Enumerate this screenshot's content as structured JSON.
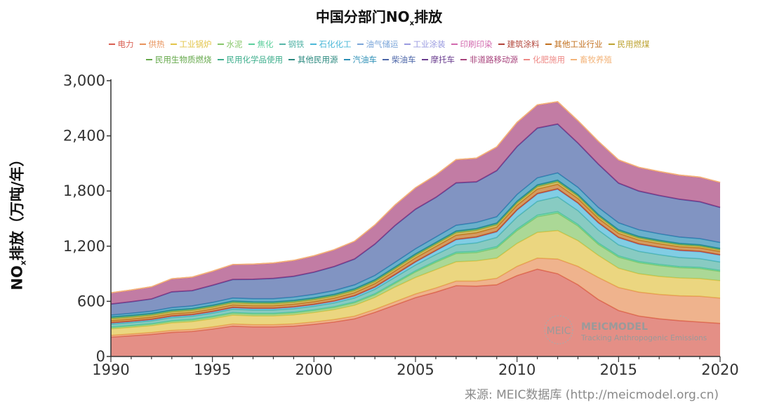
{
  "header": {
    "title_main": "中国分部门NO",
    "title_sub": "x",
    "title_tail": "排放"
  },
  "source_text": "来源: MEIC数据库 (http://meicmodel.org.cn)",
  "watermark": {
    "badge": "MEIC",
    "name": "MEICMODEL",
    "tagline": "Tracking Anthropogenic Emissions"
  },
  "chart_data": {
    "type": "area",
    "stacked": true,
    "title": "中国分部门NOx排放",
    "xlabel": "",
    "ylabel_main": "NO",
    "ylabel_sub": "x",
    "ylabel_tail": "排放（万吨/年）",
    "ylim": [
      0,
      3000
    ],
    "yticks": [
      0,
      600,
      1200,
      1800,
      2400,
      3000
    ],
    "ytick_labels": [
      "0",
      "600",
      "1,200",
      "1,800",
      "2,400",
      "3,000"
    ],
    "xlim": [
      1990,
      2020
    ],
    "xticks": [
      1990,
      1995,
      2000,
      2005,
      2010,
      2015,
      2020
    ],
    "xtick_labels": [
      "1990",
      "1995",
      "2000",
      "2005",
      "2010",
      "2015",
      "2020"
    ],
    "x": [
      1990,
      1991,
      1992,
      1993,
      1994,
      1995,
      1996,
      1997,
      1998,
      1999,
      2000,
      2001,
      2002,
      2003,
      2004,
      2005,
      2006,
      2007,
      2008,
      2009,
      2010,
      2011,
      2012,
      2013,
      2014,
      2015,
      2016,
      2017,
      2018,
      2019,
      2020
    ],
    "series": [
      {
        "name": "电力",
        "color": "#d95f52",
        "values": [
          210,
          225,
          240,
          262,
          272,
          298,
          330,
          322,
          322,
          330,
          350,
          375,
          410,
          480,
          560,
          640,
          700,
          770,
          765,
          780,
          880,
          950,
          900,
          780,
          620,
          500,
          440,
          410,
          390,
          375,
          360
        ]
      },
      {
        "name": "供热",
        "color": "#e8935c",
        "values": [
          20,
          20,
          21,
          22,
          22,
          23,
          24,
          24,
          24,
          25,
          26,
          27,
          29,
          32,
          36,
          40,
          45,
          50,
          55,
          70,
          100,
          120,
          160,
          200,
          240,
          250,
          260,
          265,
          270,
          280,
          275
        ]
      },
      {
        "name": "工业锅炉",
        "color": "#e3c54a",
        "values": [
          70,
          72,
          74,
          82,
          85,
          90,
          96,
          95,
          95,
          98,
          102,
          108,
          118,
          130,
          160,
          180,
          200,
          210,
          220,
          220,
          250,
          280,
          310,
          280,
          240,
          210,
          200,
          196,
          194,
          192,
          190
        ]
      },
      {
        "name": "水泥",
        "color": "#88c76a",
        "values": [
          16,
          16,
          17,
          18,
          19,
          20,
          21,
          21,
          21,
          22,
          23,
          24,
          27,
          30,
          40,
          60,
          80,
          90,
          90,
          110,
          140,
          170,
          190,
          160,
          120,
          120,
          120,
          118,
          112,
          110,
          100
        ]
      },
      {
        "name": "焦化",
        "color": "#5ccf9c",
        "values": [
          5,
          5,
          5,
          6,
          6,
          6,
          7,
          7,
          7,
          7,
          7,
          8,
          9,
          10,
          11,
          12,
          13,
          14,
          15,
          15,
          16,
          17,
          17,
          16,
          15,
          14,
          13,
          13,
          12,
          12,
          12
        ]
      },
      {
        "name": "钢铁",
        "color": "#56b5a8",
        "values": [
          30,
          30,
          30,
          32,
          33,
          34,
          36,
          36,
          36,
          37,
          38,
          40,
          43,
          48,
          55,
          62,
          70,
          80,
          90,
          100,
          130,
          150,
          160,
          150,
          140,
          120,
          110,
          105,
          98,
          95,
          90
        ]
      },
      {
        "name": "石化化工",
        "color": "#4cb8d8",
        "values": [
          12,
          12,
          13,
          14,
          14,
          15,
          16,
          16,
          16,
          17,
          17,
          18,
          20,
          22,
          26,
          32,
          40,
          55,
          60,
          60,
          75,
          80,
          82,
          80,
          78,
          77,
          77,
          76,
          75,
          75,
          74
        ]
      },
      {
        "name": "油气储运",
        "color": "#7aa5d9",
        "values": [
          2,
          2,
          2,
          2,
          2,
          2,
          2,
          2,
          2,
          2,
          2,
          2,
          3,
          3,
          3,
          3,
          3,
          3,
          3,
          3,
          3,
          3,
          3,
          3,
          3,
          3,
          3,
          3,
          3,
          3,
          3
        ]
      },
      {
        "name": "工业涂装",
        "color": "#9a9be0",
        "values": [
          1,
          1,
          1,
          1,
          1,
          1,
          1,
          1,
          1,
          1,
          1,
          1,
          1,
          1,
          1,
          1,
          1,
          1,
          1,
          1,
          1,
          1,
          1,
          1,
          1,
          1,
          1,
          1,
          1,
          1,
          1
        ]
      },
      {
        "name": "印刷印染",
        "color": "#d26aae",
        "values": [
          1,
          1,
          1,
          1,
          1,
          1,
          1,
          1,
          1,
          1,
          1,
          1,
          1,
          1,
          1,
          1,
          1,
          1,
          1,
          1,
          1,
          1,
          1,
          1,
          1,
          1,
          1,
          1,
          1,
          1,
          1
        ]
      },
      {
        "name": "建筑涂料",
        "color": "#b2453a",
        "values": [
          1,
          1,
          1,
          1,
          1,
          1,
          1,
          1,
          1,
          1,
          1,
          1,
          1,
          1,
          1,
          1,
          1,
          1,
          1,
          1,
          1,
          1,
          1,
          1,
          1,
          1,
          1,
          1,
          1,
          1,
          1
        ]
      },
      {
        "name": "其他工业行业",
        "color": "#c2701e",
        "values": [
          22,
          22,
          23,
          23,
          24,
          25,
          26,
          26,
          26,
          27,
          28,
          30,
          32,
          34,
          37,
          40,
          42,
          44,
          45,
          45,
          47,
          48,
          48,
          46,
          44,
          42,
          40,
          38,
          37,
          36,
          35
        ]
      },
      {
        "name": "民用燃煤",
        "color": "#bda332",
        "values": [
          20,
          20,
          20,
          21,
          21,
          21,
          22,
          22,
          21,
          21,
          21,
          21,
          22,
          22,
          23,
          24,
          24,
          25,
          25,
          25,
          25,
          25,
          25,
          24,
          23,
          22,
          21,
          20,
          19,
          18,
          17
        ]
      },
      {
        "name": "民用生物质燃烧",
        "color": "#66a94c",
        "values": [
          15,
          15,
          15,
          15,
          15,
          15,
          15,
          15,
          15,
          15,
          15,
          15,
          15,
          15,
          15,
          15,
          15,
          15,
          15,
          15,
          15,
          15,
          15,
          14,
          14,
          13,
          13,
          12,
          12,
          11,
          11
        ]
      },
      {
        "name": "民用化学品使用",
        "color": "#3dae8c",
        "values": [
          1,
          1,
          1,
          1,
          1,
          1,
          1,
          1,
          1,
          1,
          1,
          1,
          1,
          1,
          1,
          1,
          1,
          1,
          1,
          1,
          1,
          1,
          1,
          1,
          1,
          1,
          1,
          1,
          1,
          1,
          1
        ]
      },
      {
        "name": "其他民用源",
        "color": "#2d8a80",
        "values": [
          5,
          5,
          5,
          5,
          5,
          5,
          5,
          5,
          5,
          5,
          5,
          5,
          5,
          5,
          5,
          5,
          5,
          5,
          5,
          5,
          5,
          5,
          5,
          5,
          5,
          5,
          5,
          5,
          5,
          5,
          5
        ]
      },
      {
        "name": "汽油车",
        "color": "#2c8fb6",
        "values": [
          20,
          22,
          24,
          26,
          28,
          30,
          32,
          33,
          34,
          36,
          38,
          40,
          42,
          46,
          50,
          54,
          58,
          62,
          66,
          68,
          72,
          76,
          78,
          78,
          76,
          74,
          72,
          70,
          68,
          66,
          64
        ]
      },
      {
        "name": "柴油车",
        "color": "#4c66a8",
        "values": [
          118,
          125,
          132,
          170,
          165,
          185,
          200,
          210,
          220,
          225,
          240,
          260,
          280,
          340,
          400,
          430,
          430,
          460,
          440,
          500,
          520,
          540,
          530,
          480,
          470,
          430,
          420,
          415,
          410,
          400,
          380
        ]
      },
      {
        "name": "摩托车",
        "color": "#6a3d8f",
        "values": [
          2,
          2,
          2,
          2,
          2,
          3,
          3,
          3,
          3,
          3,
          3,
          3,
          3,
          3,
          3,
          3,
          3,
          3,
          3,
          3,
          3,
          3,
          3,
          3,
          3,
          3,
          3,
          3,
          3,
          3,
          3
        ]
      },
      {
        "name": "非道路移动源",
        "color": "#a8447d",
        "values": [
          120,
          125,
          130,
          140,
          145,
          150,
          160,
          162,
          165,
          170,
          175,
          180,
          190,
          205,
          220,
          230,
          240,
          250,
          255,
          255,
          260,
          250,
          240,
          240,
          245,
          250,
          255,
          258,
          260,
          265,
          270
        ]
      },
      {
        "name": "化肥施用",
        "color": "#ee8a87",
        "values": [
          1,
          1,
          1,
          1,
          1,
          1,
          1,
          1,
          1,
          1,
          1,
          1,
          1,
          1,
          1,
          1,
          1,
          1,
          1,
          1,
          1,
          1,
          1,
          1,
          1,
          1,
          1,
          1,
          1,
          1,
          1
        ]
      },
      {
        "name": "畜牧养殖",
        "color": "#f3b47a",
        "values": [
          1,
          1,
          1,
          1,
          1,
          1,
          1,
          1,
          1,
          1,
          1,
          1,
          1,
          1,
          1,
          1,
          1,
          1,
          1,
          1,
          1,
          1,
          1,
          1,
          1,
          1,
          1,
          1,
          1,
          1,
          1
        ]
      }
    ],
    "legend_position": "top-center"
  }
}
